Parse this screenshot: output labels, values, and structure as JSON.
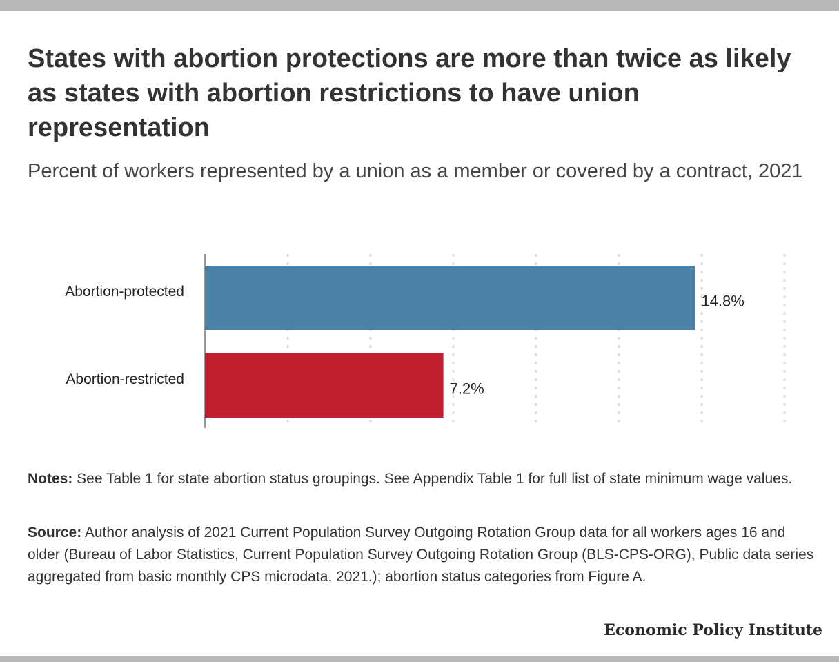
{
  "header": {
    "title": "States with abortion protections are more than twice as likely as states with abortion restrictions to have union representation",
    "subtitle": "Percent of workers represented by a union as a member or covered by a contract, 2021"
  },
  "chart_data": {
    "type": "bar",
    "orientation": "horizontal",
    "categories": [
      "Abortion-protected",
      "Abortion-restricted"
    ],
    "values": [
      14.8,
      7.2
    ],
    "value_labels": [
      "14.8%",
      "7.2%"
    ],
    "colors": [
      "#4a81a5",
      "#c01f2f"
    ],
    "xlim": [
      0,
      17.5
    ],
    "grid": true,
    "title": "",
    "xlabel": "",
    "ylabel": ""
  },
  "footer": {
    "notes_label": "Notes:",
    "notes_text": " See Table 1 for state abortion status groupings. See Appendix Table 1 for full list of state minimum wage values.",
    "source_label": "Source:",
    "source_text": " Author analysis of 2021 Current Population Survey Outgoing Rotation Group data for all workers ages 16 and older (Bureau of Labor Statistics, Current Population Survey Outgoing Rotation Group (BLS-CPS-ORG), Public data series aggregated from basic monthly CPS microdata, 2021.); abortion status categories from Figure A.",
    "brand": "Economic Policy Institute"
  }
}
